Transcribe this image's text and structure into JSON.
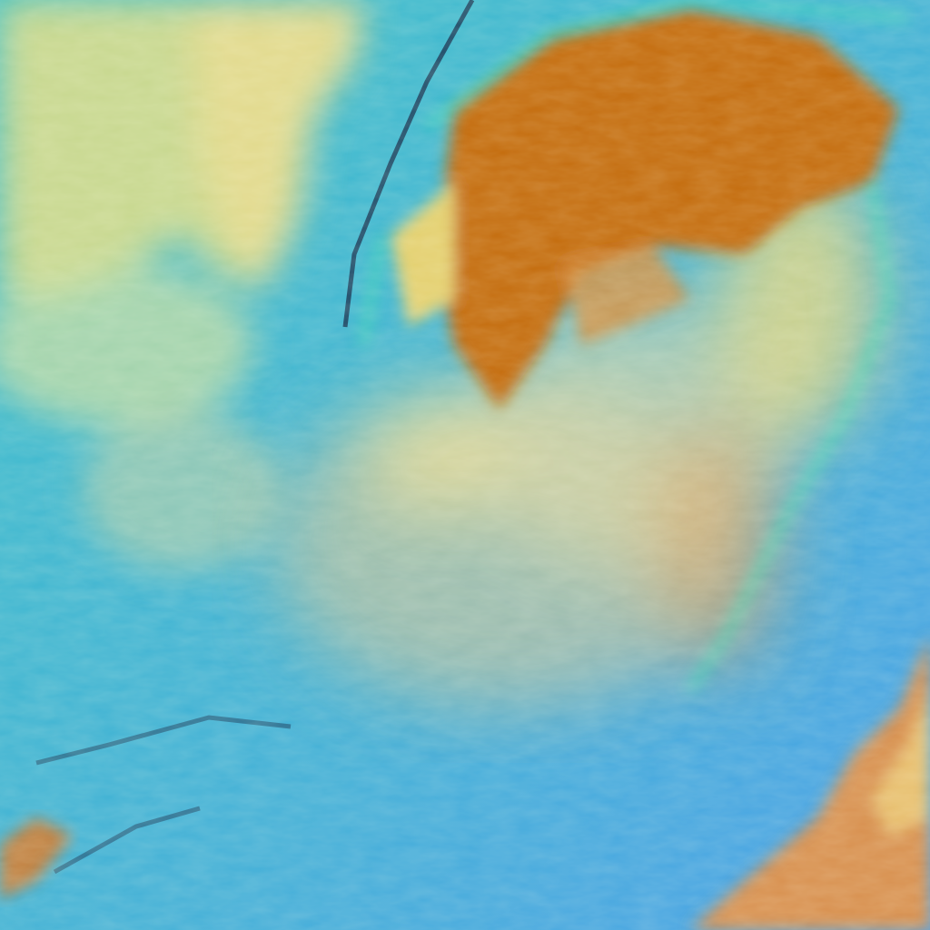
{
  "image": {
    "kind": "false-color satellite imagery",
    "colors": {
      "ocean": "#3fb7d0",
      "ocean_deep": "#4aa6e0",
      "low_cloud": "#e0dc8a",
      "high_cloud": "#c06a10",
      "cloud_edge": "#40e0b0",
      "shadow": "#102040"
    },
    "regions": [
      "storm-core",
      "cloud-band",
      "landmass-top-left",
      "ocean",
      "cloud-bottom-right",
      "cloud-bottom-left"
    ]
  }
}
